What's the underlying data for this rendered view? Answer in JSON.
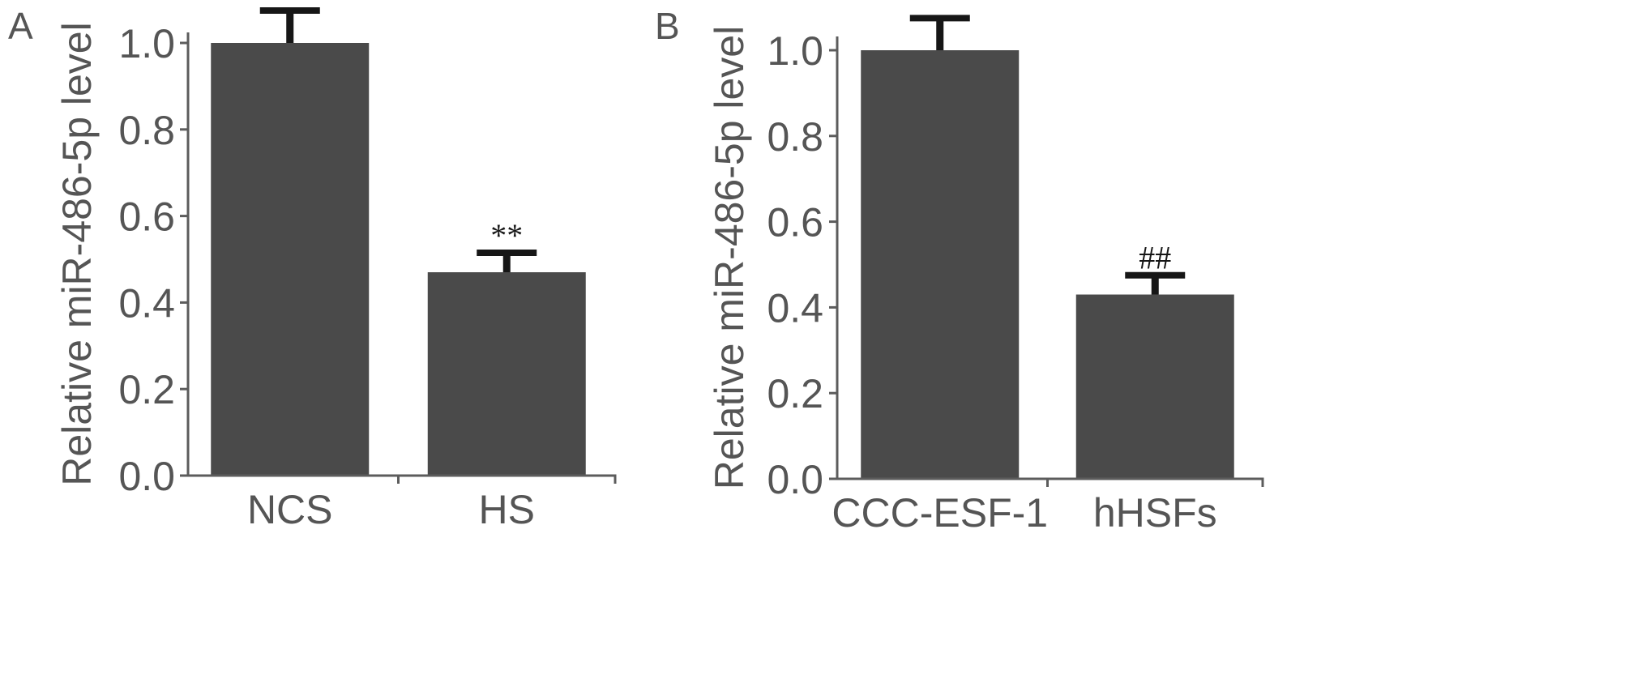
{
  "figure": {
    "background": "#ffffff",
    "colors": {
      "bar": "#4a4a4a",
      "error_bar": "#161616",
      "axis": "#5c5c5c",
      "text": "#555555"
    }
  },
  "chart_data": [
    {
      "panel_label": "A",
      "type": "bar",
      "categories": [
        "NCS",
        "HS"
      ],
      "values": [
        1.0,
        0.47
      ],
      "error": [
        0.075,
        0.045
      ],
      "annotations": [
        null,
        "**"
      ],
      "ylabel": "Relative miR-486-5p level",
      "ylim": [
        0,
        1.0
      ],
      "yticks": [
        "0.0",
        "0.2",
        "0.4",
        "0.6",
        "0.8",
        "1.0"
      ],
      "grid": false,
      "legend": "none"
    },
    {
      "panel_label": "B",
      "type": "bar",
      "categories": [
        "CCC-ESF-1",
        "hHSFs"
      ],
      "values": [
        1.0,
        0.43
      ],
      "error": [
        0.075,
        0.045
      ],
      "annotations": [
        null,
        "##"
      ],
      "ylabel": "Relative miR-486-5p level",
      "ylim": [
        0,
        1.0
      ],
      "yticks": [
        "0.0",
        "0.2",
        "0.4",
        "0.6",
        "0.8",
        "1.0"
      ],
      "grid": false,
      "legend": "none"
    }
  ]
}
